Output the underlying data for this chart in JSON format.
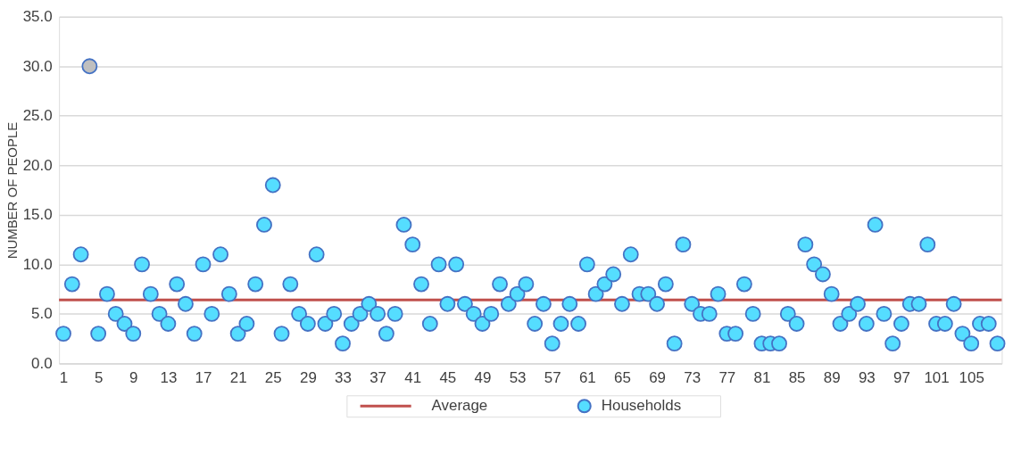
{
  "chart_data": {
    "type": "scatter",
    "ylabel": "NUMBER OF PEOPLE",
    "categories": [
      "1",
      null,
      null,
      null,
      "5",
      null,
      null,
      null,
      "9",
      null,
      null,
      null,
      "13",
      null,
      null,
      null,
      "17",
      null,
      null,
      null,
      "21",
      null,
      null,
      null,
      "25",
      null,
      null,
      null,
      "29",
      null,
      null,
      null,
      "33",
      null,
      null,
      null,
      "37",
      null,
      null,
      null,
      "41",
      null,
      null,
      null,
      "45",
      null,
      null,
      null,
      "49",
      null,
      null,
      null,
      "53",
      null,
      null,
      null,
      "57",
      null,
      null,
      null,
      "61",
      null,
      null,
      null,
      "65",
      null,
      null,
      null,
      "69",
      null,
      null,
      null,
      "73",
      null,
      null,
      null,
      "77",
      null,
      null,
      null,
      "81",
      null,
      null,
      null,
      "85",
      null,
      null,
      null,
      "89",
      null,
      null,
      null,
      "93",
      null,
      null,
      null,
      "97",
      null,
      null,
      null,
      "101",
      null,
      null,
      null,
      "105",
      null,
      null,
      null
    ],
    "series": [
      {
        "name": "Households",
        "color": "#55ddff",
        "colors": [
          "#55ddff",
          "#55ddff",
          "#55ddff",
          "#bfbfbf",
          "#55ddff",
          "#55ddff",
          "#55ddff",
          "#55ddff",
          "#55ddff",
          "#55ddff",
          "#55ddff",
          "#55ddff",
          "#55ddff",
          "#55ddff",
          "#55ddff",
          "#55ddff",
          "#55ddff",
          "#55ddff",
          "#55ddff",
          "#55ddff",
          "#55ddff",
          "#55ddff",
          "#55ddff",
          "#55ddff",
          "#55ddff",
          "#55ddff",
          "#55ddff",
          "#55ddff",
          "#55ddff",
          "#55ddff",
          "#55ddff",
          "#55ddff",
          "#55ddff",
          "#55ddff",
          "#55ddff",
          "#55ddff",
          "#55ddff",
          "#55ddff",
          "#55ddff",
          "#55ddff",
          "#55ddff",
          "#55ddff",
          "#55ddff",
          "#55ddff",
          "#55ddff",
          "#55ddff",
          "#55ddff",
          "#55ddff",
          "#55ddff",
          "#55ddff",
          "#55ddff",
          "#55ddff",
          "#55ddff",
          "#55ddff",
          "#55ddff",
          "#55ddff",
          "#55ddff",
          "#55ddff",
          "#55ddff",
          "#55ddff",
          "#55ddff",
          "#55ddff",
          "#55ddff",
          "#55ddff",
          "#55ddff",
          "#55ddff",
          "#55ddff",
          "#55ddff",
          "#55ddff",
          "#55ddff",
          "#55ddff",
          "#55ddff",
          "#55ddff",
          "#55ddff",
          "#55ddff",
          "#55ddff",
          "#55ddff",
          "#55ddff",
          "#55ddff",
          "#55ddff",
          "#55ddff",
          "#55ddff",
          "#55ddff",
          "#55ddff",
          "#55ddff",
          "#55ddff",
          "#55ddff",
          "#55ddff",
          "#55ddff",
          "#55ddff",
          "#55ddff",
          "#55ddff",
          "#55ddff",
          "#55ddff",
          "#55ddff",
          "#55ddff",
          "#55ddff",
          "#55ddff",
          "#55ddff",
          "#55ddff",
          "#55ddff",
          "#55ddff",
          "#55ddff",
          "#55ddff",
          "#55ddff",
          "#55ddff",
          "#55ddff",
          "#55ddff"
        ],
        "values": [
          3,
          8,
          11,
          30,
          3,
          7,
          5,
          4,
          3,
          10,
          7,
          5,
          4,
          8,
          6,
          3,
          10,
          5,
          11,
          7,
          3,
          4,
          8,
          14,
          18,
          3,
          8,
          5,
          4,
          11,
          4,
          5,
          2,
          4,
          5,
          6,
          5,
          3,
          5,
          14,
          12,
          8,
          4,
          10,
          6,
          10,
          6,
          5,
          4,
          5,
          8,
          6,
          7,
          8,
          4,
          6,
          2,
          4,
          6,
          4,
          10,
          7,
          8,
          9,
          6,
          11,
          7,
          7,
          6,
          8,
          2,
          12,
          6,
          5,
          5,
          7,
          3,
          3,
          8,
          5,
          2,
          2,
          2,
          5,
          4,
          12,
          10,
          9,
          7,
          4,
          5,
          6,
          4,
          14,
          5,
          2,
          4,
          6,
          6,
          12,
          4,
          4,
          6,
          3,
          2,
          4,
          4,
          2
        ]
      }
    ],
    "ylim": [
      0,
      35
    ],
    "yticks": [
      {
        "value": 0,
        "label": "0.0"
      },
      {
        "value": 5,
        "label": "5.0"
      },
      {
        "value": 10,
        "label": "10.0"
      },
      {
        "value": 15,
        "label": "15.0"
      },
      {
        "value": 20,
        "label": "20.0"
      },
      {
        "value": 25,
        "label": "25.0"
      },
      {
        "value": 30,
        "label": "30.0"
      },
      {
        "value": 35,
        "label": "35.0"
      }
    ],
    "ref_lines": [
      {
        "axis": "y",
        "value": 6.4,
        "label": "Average",
        "color": "#c0504d",
        "line_style": "solid"
      }
    ],
    "grid": "y",
    "legend": "bottom",
    "marker": "circle"
  }
}
